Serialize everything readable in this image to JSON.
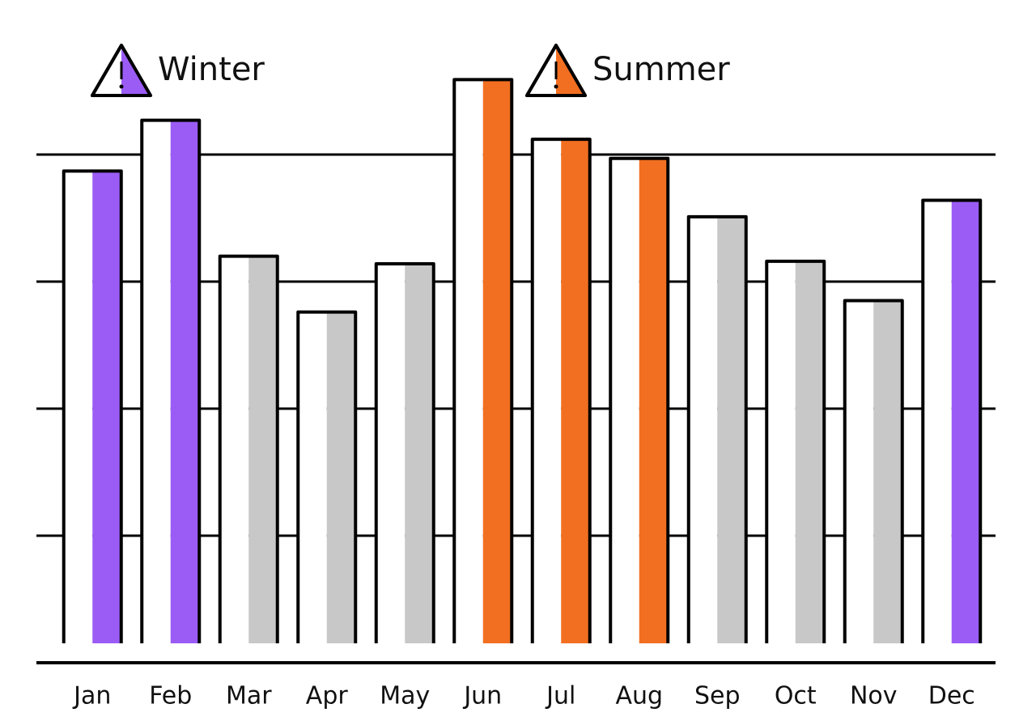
{
  "chart_data": {
    "type": "bar",
    "categories": [
      "Jan",
      "Feb",
      "Mar",
      "Apr",
      "May",
      "Jun",
      "Jul",
      "Aug",
      "Sep",
      "Oct",
      "Nov",
      "Dec"
    ],
    "values": [
      3.87,
      4.27,
      3.2,
      2.76,
      3.14,
      4.59,
      4.12,
      3.97,
      3.51,
      3.16,
      2.85,
      3.64
    ],
    "colors": [
      "#9b5cf6",
      "#9b5cf6",
      "#c8c8c8",
      "#c8c8c8",
      "#c8c8c8",
      "#f26f21",
      "#f26f21",
      "#f26f21",
      "#c8c8c8",
      "#c8c8c8",
      "#c8c8c8",
      "#9b5cf6"
    ],
    "ylim": [
      0,
      5
    ],
    "yticks": [
      0,
      1,
      2,
      3,
      4
    ],
    "grid": true,
    "annotations": [
      {
        "text": "Winter",
        "color": "#9b5cf6"
      },
      {
        "text": "Summer",
        "color": "#f26f21"
      }
    ]
  }
}
